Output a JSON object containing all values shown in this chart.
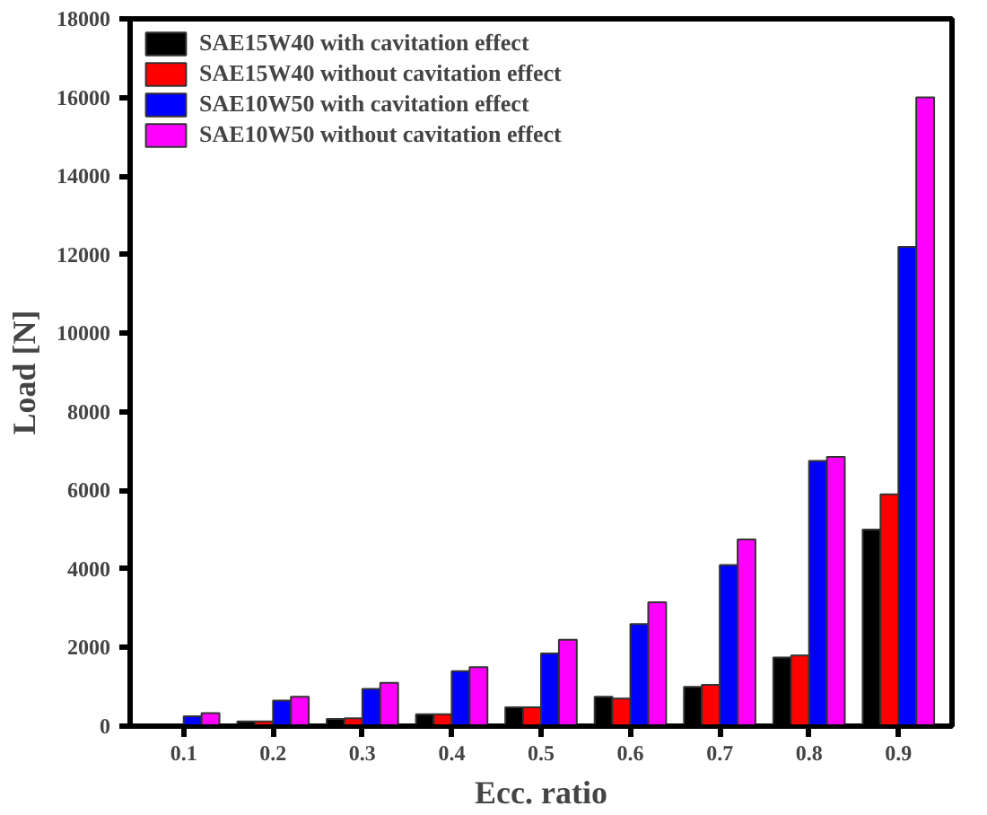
{
  "chart_data": {
    "type": "bar",
    "xlabel": "Ecc. ratio",
    "ylabel": "Load [N]",
    "categories": [
      "0.1",
      "0.2",
      "0.3",
      "0.4",
      "0.5",
      "0.6",
      "0.7",
      "0.8",
      "0.9"
    ],
    "series": [
      {
        "name": "SAE15W40 with cavitation effect",
        "color": "#000000",
        "values": [
          null,
          120,
          180,
          300,
          480,
          750,
          1000,
          1750,
          5000
        ]
      },
      {
        "name": "SAE15W40 without cavitation effect",
        "color": "#ff0000",
        "values": [
          null,
          120,
          200,
          300,
          480,
          700,
          1050,
          1800,
          5900
        ]
      },
      {
        "name": "SAE10W50 with cavitation effect",
        "color": "#0000ff",
        "values": [
          250,
          650,
          950,
          1400,
          1850,
          2600,
          4100,
          6750,
          12200
        ]
      },
      {
        "name": "SAE10W50 without cavitation effect",
        "color": "#ff00ff",
        "values": [
          330,
          750,
          1100,
          1500,
          2200,
          3150,
          4750,
          6850,
          16000
        ]
      }
    ],
    "ylim": [
      0,
      18000
    ],
    "yticks": [
      0,
      2000,
      4000,
      6000,
      8000,
      10000,
      12000,
      14000,
      16000,
      18000
    ],
    "grid": false,
    "legend": "top left"
  }
}
